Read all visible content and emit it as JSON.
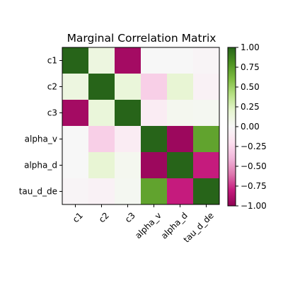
{
  "chart_data": {
    "type": "heatmap",
    "title": "Marginal Correlation Matrix",
    "xlabel": "",
    "ylabel": "",
    "rows": [
      "c1",
      "c2",
      "c3",
      "alpha_v",
      "alpha_d",
      "tau_d_de"
    ],
    "columns": [
      "c1",
      "c2",
      "c3",
      "alpha_v",
      "alpha_d",
      "tau_d_de"
    ],
    "values": [
      [
        1.0,
        0.12,
        -0.92,
        0.0,
        0.0,
        -0.03
      ],
      [
        0.12,
        1.0,
        0.15,
        -0.28,
        0.18,
        -0.05
      ],
      [
        -0.92,
        0.15,
        1.0,
        -0.1,
        0.04,
        0.03
      ],
      [
        0.0,
        -0.28,
        -0.1,
        1.0,
        -0.95,
        0.72
      ],
      [
        0.0,
        0.18,
        0.04,
        -0.95,
        1.0,
        -0.8
      ],
      [
        -0.03,
        -0.05,
        0.03,
        0.72,
        -0.8,
        1.0
      ]
    ],
    "colormap": "PiYG",
    "vmin": -1.0,
    "vmax": 1.0,
    "colorbar": {
      "ticks": [
        1.0,
        0.75,
        0.5,
        0.25,
        0.0,
        -0.25,
        -0.5,
        -0.75,
        -1.0
      ],
      "tick_labels": [
        "1.00",
        "0.75",
        "0.50",
        "0.25",
        "0.00",
        "−0.25",
        "−0.50",
        "−0.75",
        "−1.00"
      ]
    },
    "x_tick_rotation": 45,
    "grid": false
  }
}
